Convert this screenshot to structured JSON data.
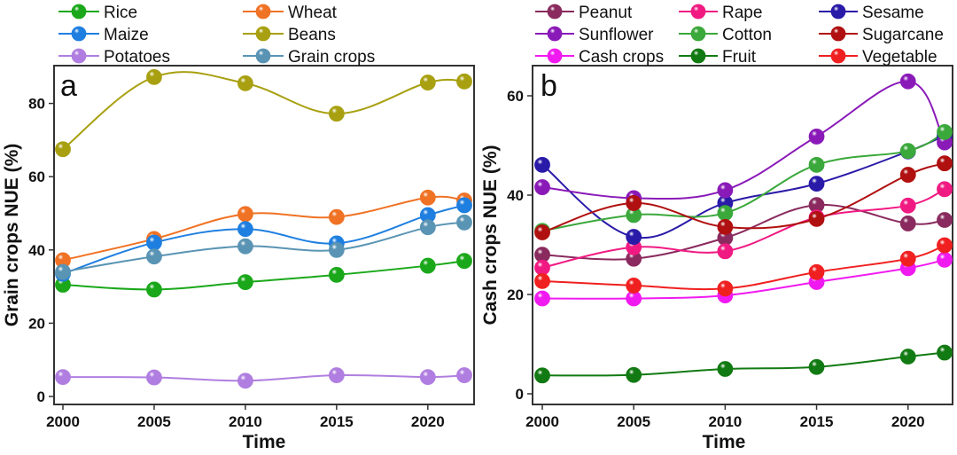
{
  "chart_data": [
    {
      "type": "line",
      "panel": "a",
      "title": "",
      "xlabel": "Time",
      "ylabel": "Grain crops NUE (%)",
      "x": [
        2000,
        2005,
        2010,
        2015,
        2020,
        2022
      ],
      "xticks": [
        2000,
        2005,
        2010,
        2015,
        2020
      ],
      "yticks": [
        0,
        20,
        40,
        60,
        80
      ],
      "xlim": [
        1999.5,
        2022.5
      ],
      "ylim": [
        -2,
        90
      ],
      "grid": false,
      "legend_position": "top",
      "series": [
        {
          "name": "Rice",
          "color": "#1aa81a",
          "values": [
            30.5,
            29.2,
            31.2,
            33.2,
            35.7,
            37.0
          ]
        },
        {
          "name": "Wheat",
          "color": "#f07224",
          "values": [
            37.2,
            43.0,
            49.8,
            49.0,
            54.3,
            53.5
          ]
        },
        {
          "name": "Maize",
          "color": "#1f7fe0",
          "values": [
            33.5,
            42.0,
            45.7,
            41.8,
            49.5,
            52.2
          ]
        },
        {
          "name": "Beans",
          "color": "#a8a010",
          "values": [
            67.5,
            87.2,
            85.5,
            77.2,
            85.7,
            86.0
          ]
        },
        {
          "name": "Potatoes",
          "color": "#b07ee0",
          "values": [
            5.3,
            5.2,
            4.3,
            5.8,
            5.3,
            5.8
          ]
        },
        {
          "name": "Grain crops",
          "color": "#5a94b4",
          "values": [
            34.0,
            38.2,
            41.0,
            40.0,
            46.2,
            47.5
          ]
        }
      ]
    },
    {
      "type": "line",
      "panel": "b",
      "title": "",
      "xlabel": "Time",
      "ylabel": "Cash crops NUE (%)",
      "x": [
        2000,
        2005,
        2010,
        2015,
        2020,
        2022
      ],
      "xticks": [
        2000,
        2005,
        2010,
        2015,
        2020
      ],
      "yticks": [
        0,
        20,
        40,
        60
      ],
      "xlim": [
        1999.5,
        2022.5
      ],
      "ylim": [
        -2,
        66
      ],
      "grid": false,
      "legend_position": "top",
      "series": [
        {
          "name": "Peanut",
          "color": "#8a2a5e",
          "values": [
            28.0,
            27.2,
            31.4,
            38.0,
            34.3,
            35.0
          ]
        },
        {
          "name": "Rape",
          "color": "#f01a82",
          "values": [
            25.4,
            29.5,
            28.7,
            35.5,
            37.9,
            41.2
          ]
        },
        {
          "name": "Sesame",
          "color": "#2a1aa8",
          "values": [
            46.1,
            31.6,
            38.4,
            42.3,
            48.8,
            52.0
          ]
        },
        {
          "name": "Sunflower",
          "color": "#8a1ab8",
          "values": [
            41.6,
            39.4,
            41.0,
            51.8,
            62.9,
            50.6
          ]
        },
        {
          "name": "Cotton",
          "color": "#3aa83a",
          "values": [
            32.8,
            36.0,
            36.4,
            46.1,
            48.9,
            52.7
          ]
        },
        {
          "name": "Sugarcane",
          "color": "#b01010",
          "values": [
            32.5,
            38.4,
            33.6,
            35.2,
            44.1,
            46.4
          ]
        },
        {
          "name": "Cash crops",
          "color": "#f01af0",
          "values": [
            19.2,
            19.2,
            19.8,
            22.5,
            25.3,
            27.0
          ]
        },
        {
          "name": "Fruit",
          "color": "#127a12",
          "values": [
            3.7,
            3.8,
            5.0,
            5.4,
            7.5,
            8.3
          ]
        },
        {
          "name": "Vegetable",
          "color": "#f02020",
          "values": [
            22.7,
            21.8,
            21.2,
            24.5,
            27.2,
            29.9
          ]
        }
      ]
    }
  ],
  "panels": [
    {
      "letter": "a"
    },
    {
      "letter": "b"
    }
  ]
}
